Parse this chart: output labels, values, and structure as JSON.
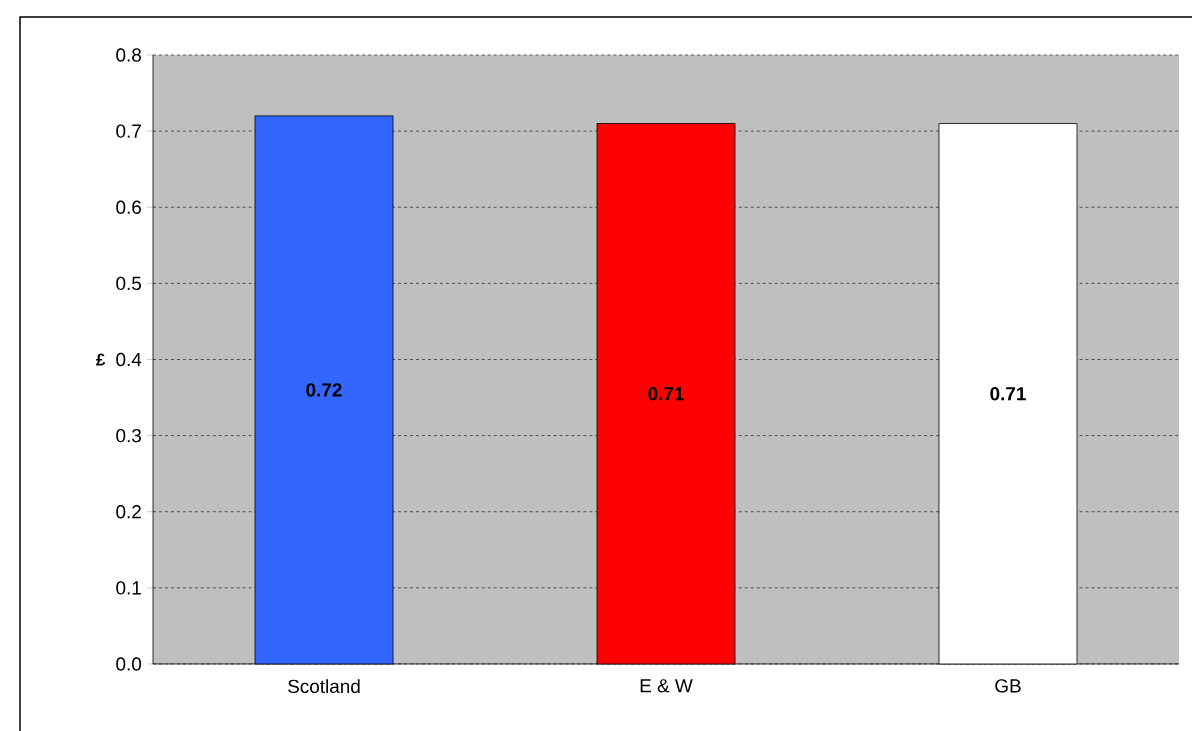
{
  "chart_data": {
    "type": "bar",
    "ylabel": "£",
    "categories": [
      "Scotland",
      "E & W",
      "GB"
    ],
    "values": [
      0.72,
      0.71,
      0.71
    ],
    "colors": [
      "#3366ff",
      "#ff0000",
      "#ffffff"
    ],
    "data_labels": true,
    "ylim": [
      0,
      0.8
    ],
    "yticks": [
      {
        "value": 0,
        "label": "0.0"
      },
      0.1,
      0.2,
      0.3,
      0.4,
      0.5,
      0.6,
      0.7,
      0.8
    ],
    "grid": "y"
  }
}
